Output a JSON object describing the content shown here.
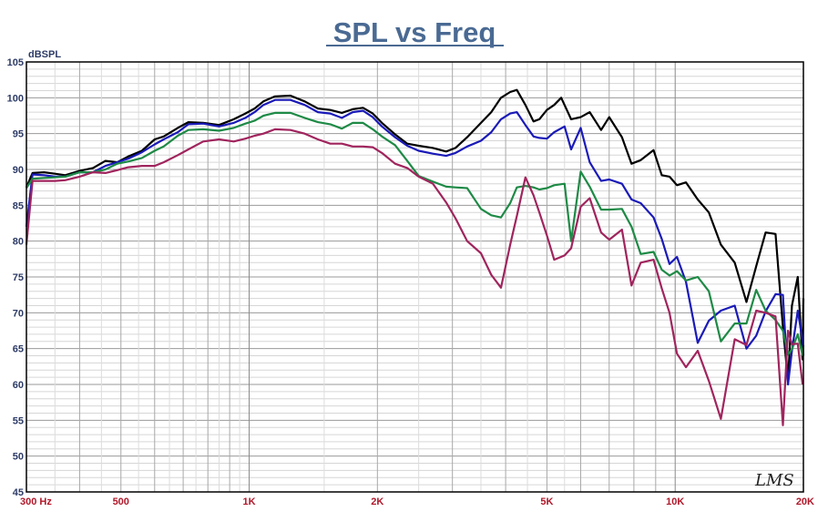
{
  "chart_data": {
    "type": "line",
    "title": "SPL vs Freq",
    "ylabel": "dBSPL",
    "xlabel": "",
    "xscale": "log",
    "xlim": [
      300,
      20000
    ],
    "ylim": [
      45,
      105
    ],
    "yticks": [
      45,
      50,
      55,
      60,
      65,
      70,
      75,
      80,
      85,
      90,
      95,
      100,
      105
    ],
    "xtick_labels": [
      {
        "value": 300,
        "label": "300  Hz"
      },
      {
        "value": 500,
        "label": "500"
      },
      {
        "value": 1000,
        "label": "1K"
      },
      {
        "value": 2000,
        "label": "2K"
      },
      {
        "value": 5000,
        "label": "5K"
      },
      {
        "value": 10000,
        "label": "10K"
      },
      {
        "value": 20000,
        "label": "20K"
      }
    ],
    "grid": true,
    "logo_text": "LMS",
    "series": [
      {
        "color": "#000000",
        "points": [
          [
            300,
            87.5
          ],
          [
            310,
            89.5
          ],
          [
            330,
            89.6
          ],
          [
            350,
            89.4
          ],
          [
            370,
            89.2
          ],
          [
            400,
            89.8
          ],
          [
            430,
            90.2
          ],
          [
            460,
            91.2
          ],
          [
            490,
            91.0
          ],
          [
            520,
            91.8
          ],
          [
            560,
            92.6
          ],
          [
            600,
            94.2
          ],
          [
            630,
            94.6
          ],
          [
            680,
            95.8
          ],
          [
            720,
            96.6
          ],
          [
            780,
            96.5
          ],
          [
            850,
            96.2
          ],
          [
            920,
            97.0
          ],
          [
            980,
            97.8
          ],
          [
            1030,
            98.5
          ],
          [
            1080,
            99.5
          ],
          [
            1150,
            100.2
          ],
          [
            1250,
            100.3
          ],
          [
            1350,
            99.5
          ],
          [
            1450,
            98.5
          ],
          [
            1550,
            98.3
          ],
          [
            1650,
            97.9
          ],
          [
            1750,
            98.4
          ],
          [
            1850,
            98.6
          ],
          [
            1950,
            97.8
          ],
          [
            2050,
            96.5
          ],
          [
            2200,
            94.9
          ],
          [
            2350,
            93.6
          ],
          [
            2500,
            93.3
          ],
          [
            2700,
            93.0
          ],
          [
            2900,
            92.5
          ],
          [
            3050,
            93.0
          ],
          [
            3250,
            94.5
          ],
          [
            3500,
            96.5
          ],
          [
            3700,
            98.0
          ],
          [
            3900,
            100.0
          ],
          [
            4100,
            100.8
          ],
          [
            4250,
            101.1
          ],
          [
            4450,
            99.0
          ],
          [
            4650,
            96.7
          ],
          [
            4800,
            97.0
          ],
          [
            5000,
            98.3
          ],
          [
            5200,
            99.0
          ],
          [
            5400,
            100.0
          ],
          [
            5700,
            97.0
          ],
          [
            6000,
            97.3
          ],
          [
            6300,
            98.0
          ],
          [
            6700,
            95.5
          ],
          [
            7000,
            97.3
          ],
          [
            7500,
            94.5
          ],
          [
            7900,
            90.8
          ],
          [
            8300,
            91.3
          ],
          [
            8900,
            92.7
          ],
          [
            9300,
            89.2
          ],
          [
            9700,
            89.0
          ],
          [
            10100,
            87.8
          ],
          [
            10600,
            88.2
          ],
          [
            11300,
            85.8
          ],
          [
            12000,
            84.0
          ],
          [
            12800,
            79.5
          ],
          [
            13800,
            77.0
          ],
          [
            14700,
            71.5
          ],
          [
            15500,
            76.5
          ],
          [
            16300,
            81.2
          ],
          [
            17200,
            81.0
          ],
          [
            17900,
            68.0
          ],
          [
            18400,
            60.5
          ],
          [
            18800,
            71.0
          ],
          [
            19400,
            75.0
          ],
          [
            19900,
            63.5
          ],
          [
            20000,
            72.0
          ]
        ]
      },
      {
        "color": "#1a1ab8",
        "points": [
          [
            300,
            82.0
          ],
          [
            310,
            89.3
          ],
          [
            330,
            89.2
          ],
          [
            350,
            89.0
          ],
          [
            370,
            89.0
          ],
          [
            400,
            89.6
          ],
          [
            430,
            89.6
          ],
          [
            460,
            90.5
          ],
          [
            490,
            91.0
          ],
          [
            520,
            91.5
          ],
          [
            560,
            92.4
          ],
          [
            600,
            93.5
          ],
          [
            630,
            94.2
          ],
          [
            680,
            95.2
          ],
          [
            720,
            96.3
          ],
          [
            780,
            96.4
          ],
          [
            850,
            96.0
          ],
          [
            920,
            96.5
          ],
          [
            980,
            97.2
          ],
          [
            1030,
            98.0
          ],
          [
            1080,
            99.0
          ],
          [
            1150,
            99.7
          ],
          [
            1250,
            99.7
          ],
          [
            1350,
            99.0
          ],
          [
            1450,
            98.0
          ],
          [
            1550,
            97.8
          ],
          [
            1650,
            97.2
          ],
          [
            1750,
            98.0
          ],
          [
            1850,
            98.2
          ],
          [
            1950,
            97.3
          ],
          [
            2050,
            96.0
          ],
          [
            2200,
            94.5
          ],
          [
            2350,
            93.3
          ],
          [
            2500,
            92.6
          ],
          [
            2700,
            92.2
          ],
          [
            2900,
            91.9
          ],
          [
            3050,
            92.3
          ],
          [
            3250,
            93.2
          ],
          [
            3500,
            94.0
          ],
          [
            3700,
            95.2
          ],
          [
            3900,
            97.0
          ],
          [
            4100,
            97.8
          ],
          [
            4250,
            98.0
          ],
          [
            4450,
            96.2
          ],
          [
            4650,
            94.6
          ],
          [
            4800,
            94.4
          ],
          [
            5000,
            94.3
          ],
          [
            5200,
            95.2
          ],
          [
            5500,
            96.0
          ],
          [
            5700,
            92.8
          ],
          [
            6000,
            95.8
          ],
          [
            6300,
            91.0
          ],
          [
            6700,
            88.4
          ],
          [
            7000,
            88.6
          ],
          [
            7500,
            88.0
          ],
          [
            7900,
            85.8
          ],
          [
            8300,
            85.3
          ],
          [
            8900,
            83.3
          ],
          [
            9300,
            80.3
          ],
          [
            9700,
            76.8
          ],
          [
            10100,
            77.8
          ],
          [
            10600,
            74.3
          ],
          [
            11300,
            65.8
          ],
          [
            12000,
            68.9
          ],
          [
            12800,
            70.3
          ],
          [
            13800,
            71.0
          ],
          [
            14700,
            65.0
          ],
          [
            15500,
            66.8
          ],
          [
            16300,
            70.2
          ],
          [
            17200,
            72.6
          ],
          [
            17900,
            72.5
          ],
          [
            18400,
            60.0
          ],
          [
            18800,
            64.7
          ],
          [
            19400,
            70.3
          ],
          [
            19900,
            66.2
          ],
          [
            20000,
            64.0
          ]
        ]
      },
      {
        "color": "#1e8a46",
        "points": [
          [
            300,
            87.4
          ],
          [
            310,
            88.7
          ],
          [
            330,
            88.8
          ],
          [
            350,
            88.9
          ],
          [
            370,
            89.0
          ],
          [
            400,
            89.6
          ],
          [
            430,
            89.6
          ],
          [
            460,
            90.0
          ],
          [
            490,
            90.8
          ],
          [
            520,
            91.1
          ],
          [
            560,
            91.6
          ],
          [
            600,
            92.6
          ],
          [
            630,
            93.2
          ],
          [
            680,
            94.7
          ],
          [
            720,
            95.5
          ],
          [
            780,
            95.6
          ],
          [
            850,
            95.4
          ],
          [
            920,
            95.8
          ],
          [
            980,
            96.4
          ],
          [
            1030,
            96.8
          ],
          [
            1080,
            97.5
          ],
          [
            1150,
            97.9
          ],
          [
            1250,
            97.9
          ],
          [
            1350,
            97.2
          ],
          [
            1450,
            96.6
          ],
          [
            1550,
            96.3
          ],
          [
            1650,
            95.7
          ],
          [
            1750,
            96.5
          ],
          [
            1850,
            96.5
          ],
          [
            1950,
            95.6
          ],
          [
            2050,
            94.6
          ],
          [
            2200,
            93.4
          ],
          [
            2350,
            91.2
          ],
          [
            2500,
            89.1
          ],
          [
            2700,
            88.3
          ],
          [
            2900,
            87.6
          ],
          [
            3050,
            87.5
          ],
          [
            3250,
            87.4
          ],
          [
            3500,
            84.5
          ],
          [
            3700,
            83.6
          ],
          [
            3900,
            83.3
          ],
          [
            4100,
            85.3
          ],
          [
            4250,
            87.5
          ],
          [
            4450,
            87.7
          ],
          [
            4650,
            87.5
          ],
          [
            4800,
            87.2
          ],
          [
            5000,
            87.4
          ],
          [
            5200,
            87.8
          ],
          [
            5500,
            88.0
          ],
          [
            5700,
            80.0
          ],
          [
            6000,
            89.7
          ],
          [
            6300,
            87.6
          ],
          [
            6700,
            84.4
          ],
          [
            7000,
            84.4
          ],
          [
            7500,
            84.5
          ],
          [
            7900,
            82.0
          ],
          [
            8300,
            78.2
          ],
          [
            8900,
            78.5
          ],
          [
            9300,
            76.0
          ],
          [
            9700,
            75.2
          ],
          [
            10100,
            75.8
          ],
          [
            10600,
            74.5
          ],
          [
            11300,
            75.0
          ],
          [
            12000,
            73.0
          ],
          [
            12800,
            66.0
          ],
          [
            13800,
            68.5
          ],
          [
            14700,
            68.5
          ],
          [
            15500,
            73.2
          ],
          [
            16300,
            70.3
          ],
          [
            17200,
            69.0
          ],
          [
            17900,
            67.5
          ],
          [
            18400,
            64.2
          ],
          [
            18800,
            64.9
          ],
          [
            19400,
            67.0
          ],
          [
            19900,
            64.1
          ],
          [
            20000,
            65.5
          ]
        ]
      },
      {
        "color": "#a0245d",
        "points": [
          [
            300,
            79.5
          ],
          [
            310,
            88.4
          ],
          [
            330,
            88.4
          ],
          [
            350,
            88.4
          ],
          [
            370,
            88.5
          ],
          [
            400,
            89.0
          ],
          [
            430,
            89.6
          ],
          [
            460,
            89.5
          ],
          [
            490,
            89.9
          ],
          [
            520,
            90.3
          ],
          [
            560,
            90.5
          ],
          [
            600,
            90.5
          ],
          [
            630,
            91.0
          ],
          [
            680,
            92.0
          ],
          [
            720,
            92.8
          ],
          [
            780,
            93.9
          ],
          [
            850,
            94.2
          ],
          [
            920,
            93.9
          ],
          [
            980,
            94.3
          ],
          [
            1030,
            94.7
          ],
          [
            1080,
            95.0
          ],
          [
            1150,
            95.6
          ],
          [
            1250,
            95.5
          ],
          [
            1350,
            95.0
          ],
          [
            1450,
            94.2
          ],
          [
            1550,
            93.6
          ],
          [
            1650,
            93.6
          ],
          [
            1750,
            93.2
          ],
          [
            1850,
            93.2
          ],
          [
            1950,
            93.1
          ],
          [
            2050,
            92.3
          ],
          [
            2200,
            90.8
          ],
          [
            2350,
            90.2
          ],
          [
            2500,
            89.0
          ],
          [
            2700,
            88.0
          ],
          [
            2900,
            85.4
          ],
          [
            3050,
            83.2
          ],
          [
            3250,
            80.0
          ],
          [
            3500,
            78.3
          ],
          [
            3700,
            75.3
          ],
          [
            3900,
            73.5
          ],
          [
            4100,
            79.5
          ],
          [
            4250,
            83.5
          ],
          [
            4450,
            88.9
          ],
          [
            4650,
            86.4
          ],
          [
            4800,
            84.0
          ],
          [
            5000,
            80.8
          ],
          [
            5200,
            77.4
          ],
          [
            5500,
            78.0
          ],
          [
            5700,
            79.0
          ],
          [
            6000,
            84.8
          ],
          [
            6300,
            86.0
          ],
          [
            6700,
            81.2
          ],
          [
            7000,
            80.2
          ],
          [
            7500,
            81.6
          ],
          [
            7900,
            73.8
          ],
          [
            8300,
            77.0
          ],
          [
            8900,
            77.4
          ],
          [
            9300,
            73.4
          ],
          [
            9700,
            70.0
          ],
          [
            10100,
            64.3
          ],
          [
            10600,
            62.4
          ],
          [
            11300,
            64.7
          ],
          [
            12000,
            60.5
          ],
          [
            12800,
            55.2
          ],
          [
            13800,
            66.3
          ],
          [
            14700,
            65.5
          ],
          [
            15500,
            70.3
          ],
          [
            16300,
            70.0
          ],
          [
            17200,
            69.5
          ],
          [
            17900,
            54.3
          ],
          [
            18400,
            67.5
          ],
          [
            18800,
            65.6
          ],
          [
            19400,
            65.7
          ],
          [
            19900,
            60.1
          ],
          [
            20000,
            60.2
          ]
        ]
      }
    ]
  }
}
